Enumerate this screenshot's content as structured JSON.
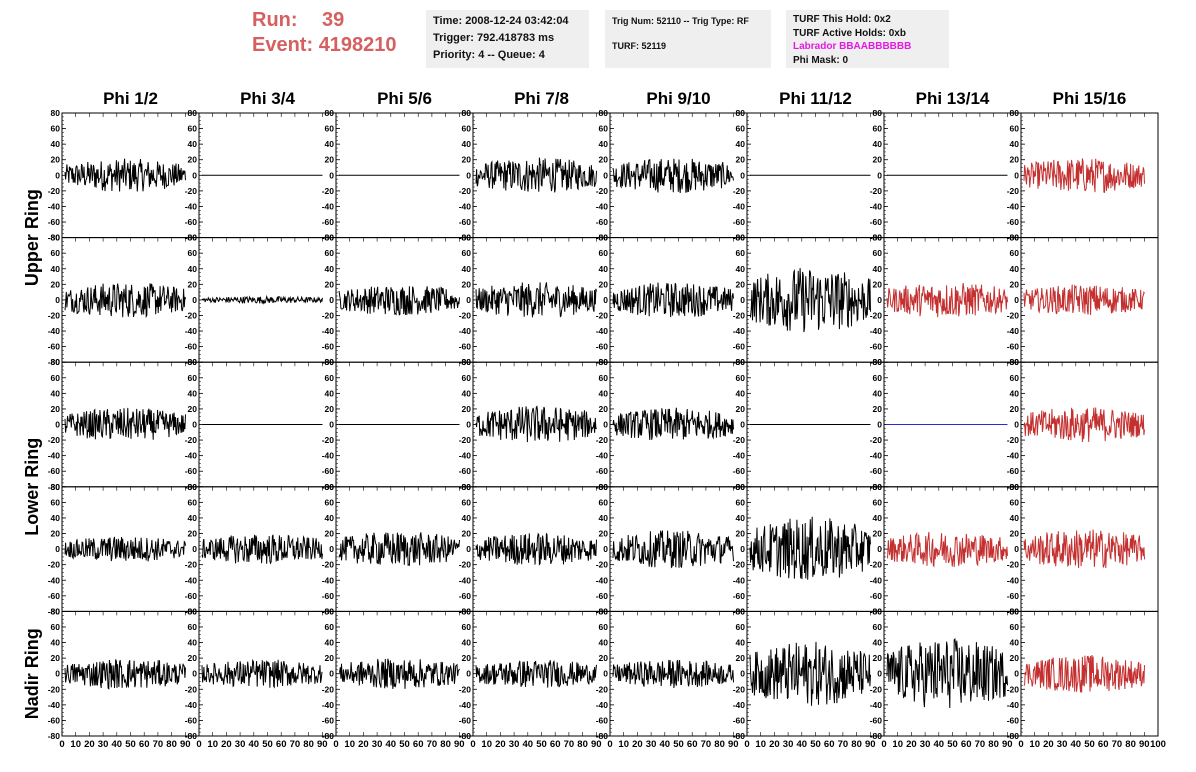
{
  "header": {
    "run_label": "Run:",
    "run_value": "39",
    "event_label": "Event:",
    "event_value": "4198210",
    "time": "Time: 2008-12-24 03:42:04",
    "trigger": "Trigger: 792.418783 ms",
    "priority": "Priority: 4 -- Queue: 4",
    "trig_num": "Trig Num: 52110 -- Trig Type: RF",
    "turf": "TURF: 52119",
    "turf_hold": "TURF This Hold: 0x2",
    "turf_active": "TURF Active Holds: 0xb",
    "labrador": "Labrador BBAABBBBBB",
    "phi_mask": "Phi Mask: 0"
  },
  "colors": {
    "black_trace": "#000000",
    "red_trace": "#c43030",
    "blue_trace": "#2b2bd4",
    "header_red": "#d65f5f",
    "labrador": "#e41ae4"
  },
  "chart_data": {
    "type": "line",
    "columns": [
      "Phi 1/2",
      "Phi 3/4",
      "Phi 5/6",
      "Phi 7/8",
      "Phi 9/10",
      "Phi 11/12",
      "Phi 13/14",
      "Phi 15/16"
    ],
    "ring_labels": [
      "Upper Ring",
      "Lower Ring",
      "Nadir Ring"
    ],
    "ylim": [
      -80,
      80
    ],
    "xlim": [
      0,
      100
    ],
    "y_ticks": [
      -80,
      -60,
      -40,
      -20,
      0,
      20,
      40,
      60,
      80
    ],
    "x_ticks": [
      0,
      10,
      20,
      30,
      40,
      50,
      60,
      70,
      80,
      90,
      100
    ],
    "grid": false,
    "panels": [
      [
        {
          "amp": 14,
          "color": "black"
        },
        {
          "amp": 0,
          "color": "black"
        },
        {
          "amp": 0,
          "color": "black"
        },
        {
          "amp": 15,
          "color": "black"
        },
        {
          "amp": 15,
          "color": "black"
        },
        {
          "amp": 0,
          "color": "black"
        },
        {
          "amp": 0,
          "color": "black"
        },
        {
          "amp": 15,
          "color": "red"
        }
      ],
      [
        {
          "amp": 15,
          "color": "black"
        },
        {
          "amp": 3,
          "color": "black"
        },
        {
          "amp": 13,
          "color": "black"
        },
        {
          "amp": 15,
          "color": "black"
        },
        {
          "amp": 15,
          "color": "black"
        },
        {
          "amp": 28,
          "color": "black"
        },
        {
          "amp": 15,
          "color": "red"
        },
        {
          "amp": 13,
          "color": "red"
        }
      ],
      [
        {
          "amp": 14,
          "color": "black"
        },
        {
          "amp": 0,
          "color": "black"
        },
        {
          "amp": 0,
          "color": "black"
        },
        {
          "amp": 16,
          "color": "black"
        },
        {
          "amp": 14,
          "color": "black"
        },
        {
          "amp": 0,
          "color": "black"
        },
        {
          "amp": 0,
          "color": "blue"
        },
        {
          "amp": 15,
          "color": "red"
        }
      ],
      [
        {
          "amp": 11,
          "color": "black"
        },
        {
          "amp": 13,
          "color": "black"
        },
        {
          "amp": 15,
          "color": "black"
        },
        {
          "amp": 14,
          "color": "black"
        },
        {
          "amp": 16,
          "color": "black"
        },
        {
          "amp": 27,
          "color": "black"
        },
        {
          "amp": 15,
          "color": "red"
        },
        {
          "amp": 17,
          "color": "red"
        }
      ],
      [
        {
          "amp": 13,
          "color": "black"
        },
        {
          "amp": 12,
          "color": "black"
        },
        {
          "amp": 13,
          "color": "black"
        },
        {
          "amp": 12,
          "color": "black"
        },
        {
          "amp": 12,
          "color": "black"
        },
        {
          "amp": 27,
          "color": "black"
        },
        {
          "amp": 30,
          "color": "black"
        },
        {
          "amp": 16,
          "color": "red"
        }
      ]
    ]
  }
}
